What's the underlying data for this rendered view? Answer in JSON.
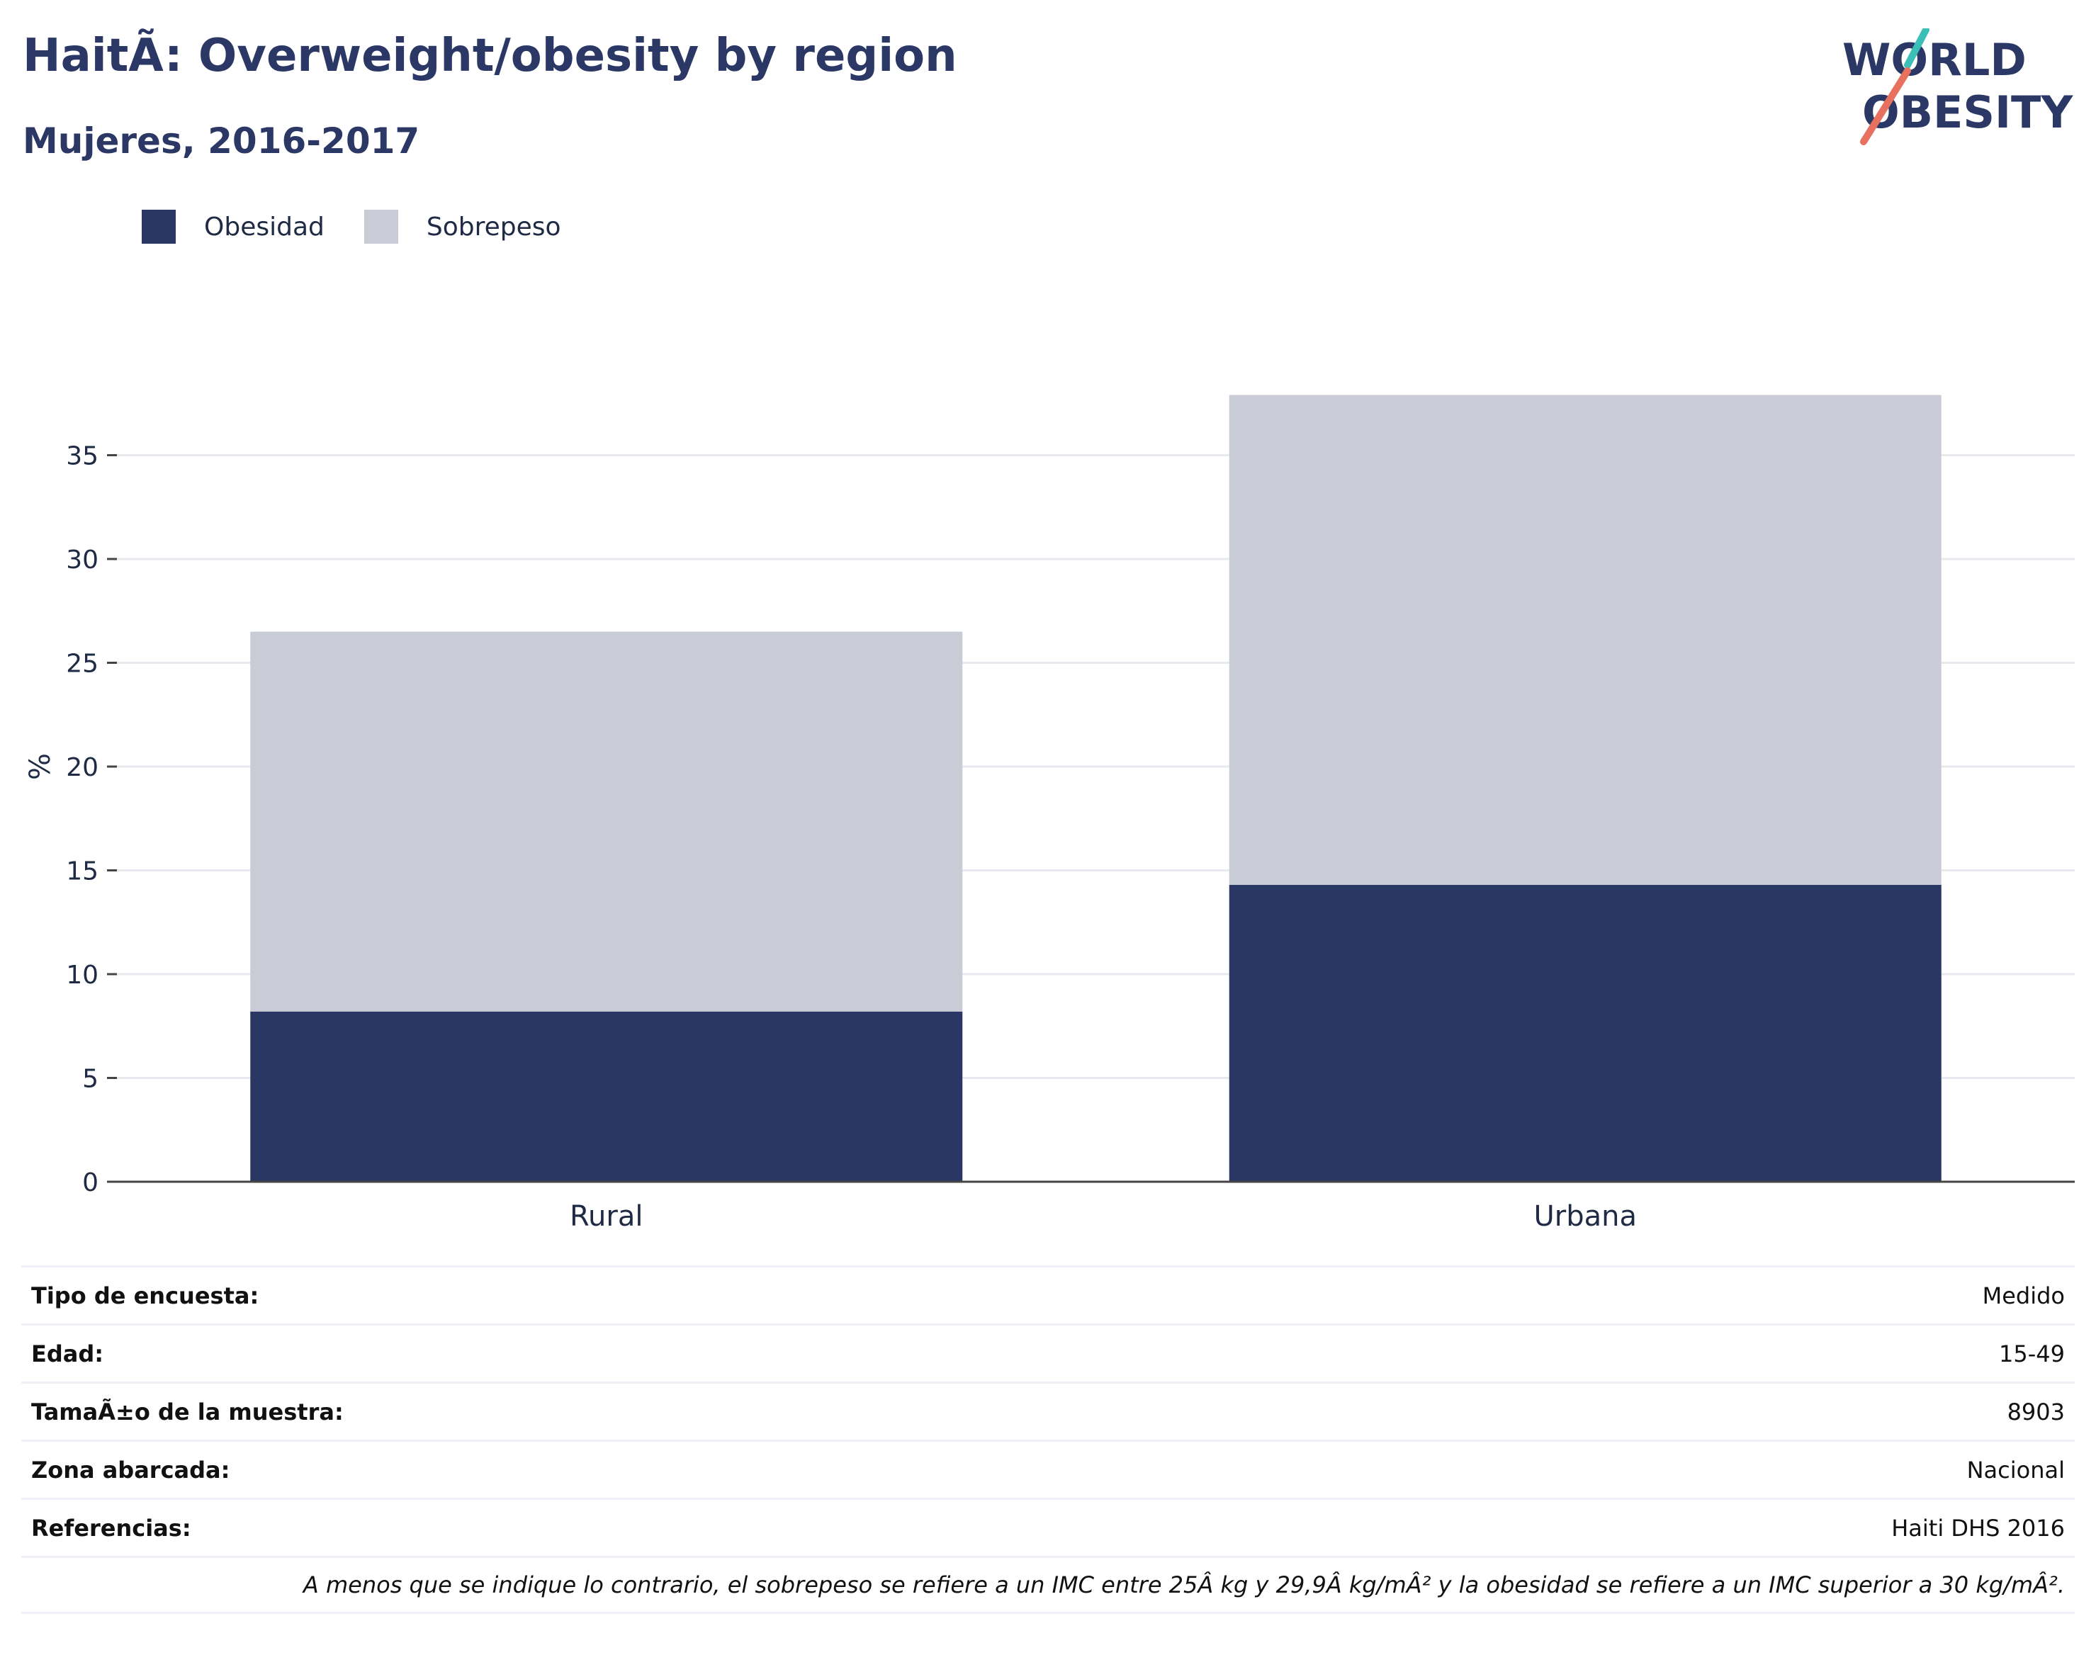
{
  "header": {
    "title": "HaitÃ: Overweight/obesity by region",
    "subtitle": "Mujeres, 2016-2017",
    "logo_line1": "WORLD",
    "logo_line2": "OBESITY"
  },
  "colors": {
    "obesity": "#2a3764",
    "overweight": "#c9cbd7",
    "grid": "#e8e9ee",
    "axis": "#444444",
    "logo_text": "#2b3866",
    "logo_teal": "#3cbfb7",
    "logo_coral": "#e8705e"
  },
  "chart_data": {
    "type": "bar",
    "stacked": true,
    "categories": [
      "Rural",
      "Urbana"
    ],
    "series": [
      {
        "name": "Obesidad",
        "values": [
          8.2,
          14.3
        ]
      },
      {
        "name": "Sobrepeso",
        "values": [
          18.3,
          23.6
        ]
      }
    ],
    "title": "HaitÃ: Overweight/obesity by region",
    "subtitle": "Mujeres, 2016-2017",
    "xlabel": "",
    "ylabel": "%",
    "ylim": [
      0,
      40
    ],
    "yticks": [
      "0",
      "5",
      "10",
      "15",
      "20",
      "25",
      "30",
      "35"
    ],
    "grid": true,
    "legend": "top-left"
  },
  "info": {
    "rows": [
      {
        "key": "Tipo de encuesta:",
        "value": "Medido"
      },
      {
        "key": "Edad:",
        "value": "15-49"
      },
      {
        "key": "TamaÃ±o de la muestra:",
        "value": "8903"
      },
      {
        "key": "Zona abarcada:",
        "value": "Nacional"
      },
      {
        "key": "Referencias:",
        "value": "Haiti DHS 2016"
      }
    ],
    "note": "A menos que se indique lo contrario, el sobrepeso se refiere a un IMC entre 25Â kg y 29,9Â kg/mÂ² y la obesidad se refiere a un IMC superior a 30 kg/mÂ²."
  }
}
